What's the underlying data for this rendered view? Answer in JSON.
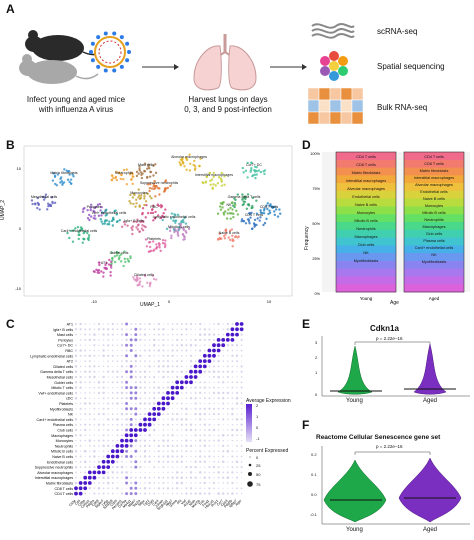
{
  "panels": {
    "a": "A",
    "b": "B",
    "c": "C",
    "d": "D",
    "e": "E",
    "f": "F"
  },
  "workflow": {
    "step1_caption": [
      "Infect young and aged mice",
      "with influenza A virus"
    ],
    "step2_caption": [
      "Harvest lungs on days",
      "0, 3, and 9 post-infection"
    ],
    "methods": [
      "scRNA-seq",
      "Spatial sequencing",
      "Bulk RNA-seq"
    ]
  },
  "umap": {
    "xlabel": "UMAP_1",
    "ylabel": "UMAP_2",
    "xticks": [
      "-10",
      "0",
      "10"
    ],
    "yticks": [
      "10",
      "0",
      "-10"
    ],
    "clusters": [
      {
        "name": "Alveolar macrophages",
        "color": "#e0b020"
      },
      {
        "name": "Interstitial macrophages",
        "color": "#c8d030"
      },
      {
        "name": "Ccr7+ DC",
        "color": "#40c0a0"
      },
      {
        "name": "Neutrophils",
        "color": "#f0a030"
      },
      {
        "name": "Mast cells",
        "color": "#a07040"
      },
      {
        "name": "Matrix fibroblasts",
        "color": "#3090d0"
      },
      {
        "name": "Suppressive neutrophils",
        "color": "#e07030"
      },
      {
        "name": "Mesothelial cells",
        "color": "#6060c0"
      },
      {
        "name": "Monocytes",
        "color": "#c0a030"
      },
      {
        "name": "Pericytes",
        "color": "#9050c0"
      },
      {
        "name": "Vwf+ endothelial cells",
        "color": "#20a0a0"
      },
      {
        "name": "Gamma delta T cells",
        "color": "#30a060"
      },
      {
        "name": "NK",
        "color": "#60b040"
      },
      {
        "name": "CD8 T cells",
        "color": "#2080c0"
      },
      {
        "name": "CD4 T cells",
        "color": "#3070c0"
      },
      {
        "name": "RBC",
        "color": "#d04080"
      },
      {
        "name": "Lymphatic endothelial cells",
        "color": "#40b0b0"
      },
      {
        "name": "Igfa+ B cells",
        "color": "#d06090"
      },
      {
        "name": "Mitotic B cells",
        "color": "#c080c0"
      },
      {
        "name": "Naive B cells",
        "color": "#f08070"
      },
      {
        "name": "Car4+ endothelial cells",
        "color": "#30b080"
      },
      {
        "name": "Platelets",
        "color": "#e060a0"
      },
      {
        "name": "Goblet cells",
        "color": "#50c070"
      },
      {
        "name": "AT1",
        "color": "#c040a0"
      },
      {
        "name": "Ciliated cells",
        "color": "#e090c0"
      }
    ]
  },
  "dotplot": {
    "rows": [
      "AT1",
      "Igfa+ B cells",
      "Mast cells",
      "Pericytes",
      "Ccr7+ DC",
      "RBC",
      "Lymphatic endothelial cells",
      "AT2",
      "Ciliated cells",
      "Gamma delta T cells",
      "Mesothelial cells",
      "Goblet cells",
      "Mitotic T cells",
      "Vwf+ endothelial cells",
      "cDC",
      "Platelets",
      "Myofibroblasts",
      "NK",
      "Car4+ endothelial cells",
      "Plasma cells",
      "Club cells",
      "Macrophages",
      "Monocytes",
      "Neutrophils",
      "Mitotic B cells",
      "Naive B cells",
      "Endothelial cells",
      "Suppressive neutrophils",
      "Alveolar macrophages",
      "Interstitial macrophages",
      "Matrix fibroblasts",
      "CD8 T cells",
      "CD4 T cells"
    ],
    "cols": [
      "Cd3e",
      "Cd4",
      "Cd8a",
      "Col1a1",
      "Pdgfra",
      "Cd68",
      "Siglecf",
      "Ly6g",
      "S100a8",
      "Cdh5",
      "Pecam1",
      "Cd79a",
      "Ms4a1",
      "Mki67",
      "Top2a",
      "Sftpc",
      "Lyz2",
      "Chil3",
      "Car4",
      "Jchain",
      "Scgb1a1",
      "Nkg7",
      "Gzma",
      "Pf4",
      "Vwf",
      "Acta2",
      "Msln",
      "Muc5b",
      "Trdc",
      "Foxj1",
      "Hba-a1",
      "Prox1",
      "Ccr7",
      "Cpa3",
      "Pdgfrb",
      "Igfbp7",
      "Ager"
    ],
    "legend_expr_title": "Average Expression",
    "legend_expr_ticks": [
      "2",
      "1",
      "0",
      "-1"
    ],
    "legend_pct_title": "Percent Expressed",
    "legend_pct_ticks": [
      "0",
      "25",
      "50",
      "75"
    ]
  },
  "stacked": {
    "ylabel": "Frequency",
    "xlabel": "Age",
    "yticks": [
      "100%",
      "75%",
      "50%",
      "25%",
      "0%"
    ],
    "groups": [
      "Young",
      "Aged"
    ],
    "young_labels": [
      "CD4 T cells",
      "CD8 T cells",
      "Matrix fibroblasts",
      "Interstitial macrophages",
      "Alveolar macrophages",
      "Endothelial cells",
      "Naive B cells",
      "Monocytes",
      "Mitotic B cells",
      "Neutrophils",
      "Macrophages",
      "Club cells",
      "NK",
      "Myofibroblasts"
    ],
    "aged_labels": [
      "CD4 T cells",
      "CD8 T cells",
      "Matrix fibroblasts",
      "Interstitial macrophages",
      "Alveolar macrophages",
      "Endothelial cells",
      "Naive B cells",
      "Monocytes",
      "Mitotic B cells",
      "Neutrophils",
      "Macrophages",
      "Club cells",
      "Plasma cells",
      "Car4+ endothelial cells",
      "NK",
      "Myofibroblasts"
    ],
    "colors": [
      "#f06a8c",
      "#f27a6e",
      "#f39050",
      "#f3a83c",
      "#eec03c",
      "#d8d23c",
      "#b8dc3e",
      "#8ee04a",
      "#64e064",
      "#4ad88a",
      "#40d0b0",
      "#40c4d0",
      "#48b0e8",
      "#6a98f0",
      "#8a84f0",
      "#a878ee",
      "#c46ce8",
      "#dc62dc"
    ]
  },
  "violin_e": {
    "title": "Cdkn1a",
    "pvalue": "p = 2.22e−16",
    "groups": [
      "Young",
      "Aged"
    ],
    "yticks": [
      "3",
      "2",
      "1",
      "0"
    ],
    "colors": [
      "#1fa84a",
      "#7b2fc0"
    ]
  },
  "violin_f": {
    "title": "Reactome Cellular Senescence gene set",
    "pvalue": "p = 2.22e−16",
    "groups": [
      "Young",
      "Aged"
    ],
    "yticks": [
      "0.2",
      "0.1",
      "0.0",
      "-0.1"
    ],
    "colors": [
      "#1fa84a",
      "#7b2fc0"
    ]
  }
}
